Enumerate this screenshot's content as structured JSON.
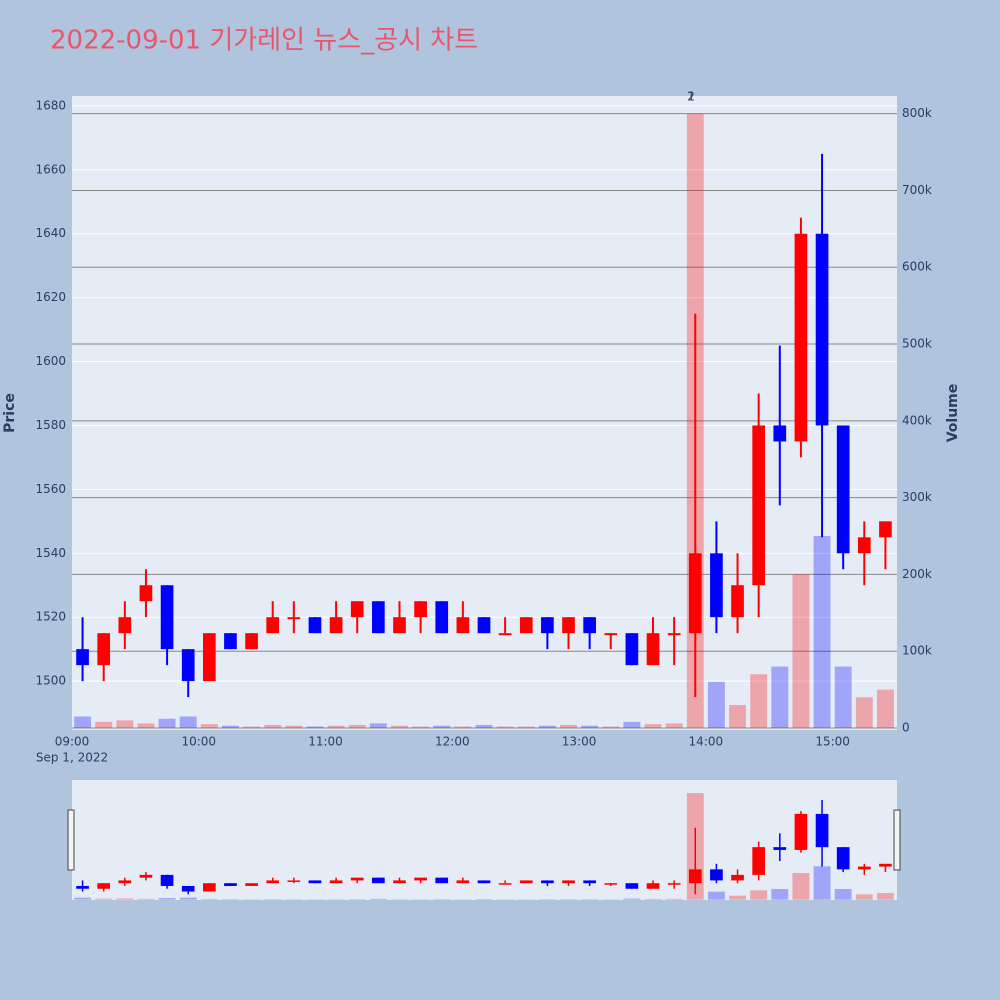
{
  "chart_data": {
    "type": "candlestick",
    "title": "2022-09-01 기가레인 뉴스_공시 차트",
    "y_label": "Price",
    "y2_label": "Volume",
    "date_label": "Sep 1, 2022",
    "increasing_color": "#ff0000",
    "decreasing_color": "#0000ff",
    "x": [
      "09:00",
      "09:10",
      "09:20",
      "09:30",
      "09:40",
      "09:50",
      "10:00",
      "10:10",
      "10:20",
      "10:30",
      "10:40",
      "10:50",
      "11:00",
      "11:10",
      "11:20",
      "11:30",
      "11:40",
      "11:50",
      "12:00",
      "12:10",
      "12:20",
      "12:30",
      "12:40",
      "12:50",
      "13:00",
      "13:10",
      "13:20",
      "13:30",
      "13:40",
      "13:50",
      "14:00",
      "14:10",
      "14:20",
      "14:30",
      "14:40",
      "14:50",
      "15:00",
      "15:10",
      "15:20"
    ],
    "open": [
      1510,
      1505,
      1515,
      1525,
      1530,
      1510,
      1500,
      1515,
      1510,
      1515,
      1520,
      1520,
      1515,
      1520,
      1525,
      1515,
      1520,
      1525,
      1515,
      1520,
      1515,
      1515,
      1520,
      1515,
      1520,
      1515,
      1515,
      1505,
      1515,
      1515,
      1540,
      1520,
      1530,
      1580,
      1575,
      1640,
      1580,
      1540,
      1545
    ],
    "high": [
      1520,
      1515,
      1525,
      1535,
      1530,
      1510,
      1515,
      1515,
      1515,
      1525,
      1525,
      1520,
      1525,
      1525,
      1525,
      1525,
      1525,
      1525,
      1525,
      1520,
      1520,
      1520,
      1520,
      1520,
      1520,
      1515,
      1515,
      1520,
      1520,
      1615,
      1550,
      1540,
      1590,
      1605,
      1645,
      1665,
      1580,
      1550,
      1550
    ],
    "low": [
      1500,
      1500,
      1510,
      1520,
      1505,
      1495,
      1500,
      1510,
      1510,
      1515,
      1515,
      1515,
      1515,
      1515,
      1515,
      1515,
      1515,
      1515,
      1515,
      1515,
      1515,
      1515,
      1510,
      1510,
      1510,
      1510,
      1505,
      1505,
      1505,
      1495,
      1515,
      1515,
      1520,
      1555,
      1570,
      1545,
      1535,
      1530,
      1535
    ],
    "close": [
      1505,
      1515,
      1520,
      1530,
      1510,
      1500,
      1515,
      1510,
      1515,
      1520,
      1520,
      1515,
      1520,
      1525,
      1515,
      1520,
      1525,
      1515,
      1520,
      1515,
      1515,
      1520,
      1515,
      1520,
      1515,
      1515,
      1505,
      1515,
      1515,
      1540,
      1520,
      1530,
      1580,
      1575,
      1640,
      1580,
      1540,
      1545,
      1550
    ],
    "volume": [
      15000,
      8000,
      10000,
      6000,
      12000,
      15000,
      5000,
      3000,
      2000,
      4000,
      3000,
      2000,
      3000,
      4000,
      6000,
      3000,
      2000,
      3000,
      2000,
      4000,
      2000,
      2000,
      3000,
      4000,
      3000,
      2000,
      8000,
      5000,
      6000,
      800000,
      60000,
      30000,
      70000,
      80000,
      200000,
      250000,
      80000,
      40000,
      50000
    ],
    "xlim": [
      "09:00",
      "15:30"
    ],
    "xticks": [
      "09:00",
      "10:00",
      "11:00",
      "12:00",
      "13:00",
      "14:00",
      "15:00"
    ],
    "ylim": [
      1484.7,
      1683.1
    ],
    "yticks": [
      1500,
      1520,
      1540,
      1560,
      1580,
      1600,
      1620,
      1640,
      1660,
      1680
    ],
    "y2lim": [
      -2600,
      823000
    ],
    "y2ticks": [
      0,
      {
        "value": 100000,
        "label": "100k"
      },
      {
        "value": 200000,
        "label": "200k"
      },
      {
        "value": 300000,
        "label": "300k"
      },
      {
        "value": 400000,
        "label": "400k"
      },
      {
        "value": 500000,
        "label": "500k"
      },
      {
        "value": 600000,
        "label": "600k"
      },
      {
        "value": 700000,
        "label": "700k"
      },
      {
        "value": 800000,
        "label": "800k"
      }
    ],
    "annotations": [
      {
        "x": "13:53",
        "text": "1"
      },
      {
        "x": "13:53",
        "text": "2"
      }
    ],
    "grid": true,
    "rangeslider": true
  }
}
